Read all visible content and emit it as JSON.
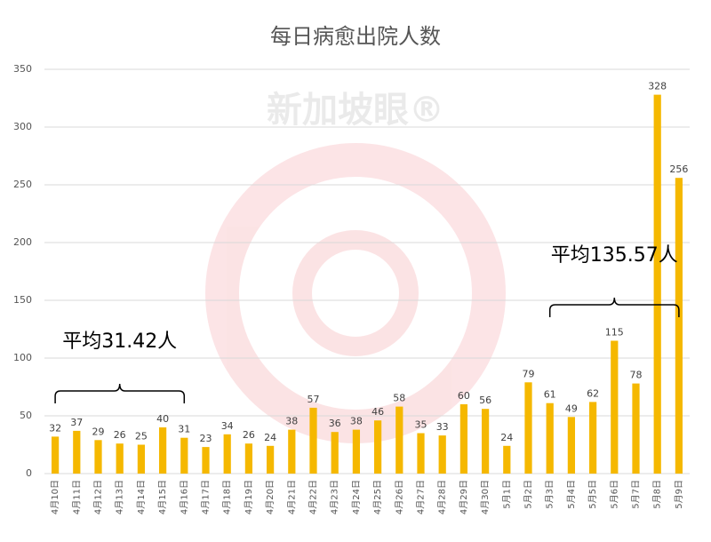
{
  "chart_data": {
    "type": "bar",
    "title": "每日病愈出院人数",
    "watermark": "新加坡眼®",
    "categories": [
      "4月10日",
      "4月11日",
      "4月12日",
      "4月13日",
      "4月14日",
      "4月15日",
      "4月16日",
      "4月17日",
      "4月18日",
      "4月19日",
      "4月20日",
      "4月21日",
      "4月22日",
      "4月23日",
      "4月24日",
      "4月25日",
      "4月26日",
      "4月27日",
      "4月28日",
      "4月29日",
      "4月30日",
      "5月1日",
      "5月2日",
      "5月3日",
      "5月4日",
      "5月5日",
      "5月6日",
      "5月7日",
      "5月8日",
      "5月9日"
    ],
    "values": [
      32,
      37,
      29,
      26,
      25,
      40,
      31,
      23,
      34,
      26,
      24,
      38,
      57,
      36,
      38,
      46,
      58,
      35,
      33,
      60,
      56,
      24,
      79,
      61,
      49,
      62,
      115,
      78,
      328,
      256
    ],
    "color": "#f5b800",
    "ylim": [
      0,
      350
    ],
    "yticks": [
      0,
      50,
      100,
      150,
      200,
      250,
      300,
      350
    ],
    "grid": true,
    "annotations": [
      "平均31.42人",
      "平均135.57人"
    ]
  }
}
